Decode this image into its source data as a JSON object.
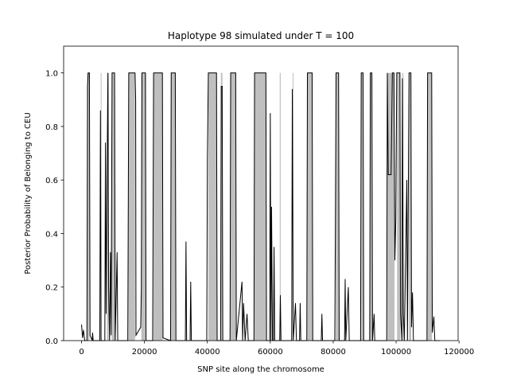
{
  "chart_data": {
    "type": "line",
    "title": "Haplotype 98 simulated under T =  100",
    "x_label": "SNP site along the chromosome",
    "y_label": "Posterior Probability of Belonging to CEU",
    "xlim": [
      -5700,
      119700
    ],
    "ylim": [
      0,
      1.1
    ],
    "xticks": [
      0,
      20000,
      40000,
      60000,
      80000,
      100000,
      120000
    ],
    "yticks": [
      {
        "value": 0,
        "label": "0.0"
      },
      0.2,
      0.4,
      0.6,
      0.8,
      {
        "value": 1,
        "label": "1.0"
      }
    ],
    "grid": false,
    "shaded_color": "#bfbfbf",
    "shaded_regions": [
      [
        1800,
        2500
      ],
      [
        6100,
        6300
      ],
      [
        8100,
        8600
      ],
      [
        9600,
        10600
      ],
      [
        14900,
        17000
      ],
      [
        19000,
        20500
      ],
      [
        22800,
        25800
      ],
      [
        28400,
        29900
      ],
      [
        40300,
        43000
      ],
      [
        44300,
        44800
      ],
      [
        47300,
        49100
      ],
      [
        54900,
        58700
      ],
      [
        63000,
        63300
      ],
      [
        67100,
        67300
      ],
      [
        71700,
        73400
      ],
      [
        80800,
        81800
      ],
      [
        88900,
        89600
      ],
      [
        91700,
        92400
      ],
      [
        97200,
        99500
      ],
      [
        100300,
        101300
      ],
      [
        102000,
        102300
      ],
      [
        104100,
        104800
      ],
      [
        109900,
        111400
      ]
    ],
    "series": [
      {
        "color": "#000000",
        "x": [
          0,
          300,
          600,
          1000,
          1700,
          1900,
          2100,
          2500,
          2700,
          3400,
          3500,
          3700,
          5800,
          6000,
          6200,
          7400,
          7600,
          7800,
          8100,
          8400,
          8600,
          8900,
          9200,
          9400,
          9700,
          10500,
          10700,
          11300,
          11500,
          14700,
          15000,
          17000,
          17200,
          17300,
          18800,
          19000,
          19200,
          20300,
          20500,
          22600,
          22900,
          25700,
          25900,
          28300,
          28500,
          29800,
          30000,
          33000,
          33200,
          33400,
          34500,
          34700,
          34900,
          39800,
          40000,
          40300,
          42900,
          43100,
          44200,
          44400,
          44700,
          44900,
          47200,
          47400,
          49000,
          49200,
          51000,
          51200,
          51500,
          52000,
          52600,
          53000,
          54800,
          55000,
          58600,
          58800,
          59800,
          60000,
          60200,
          60400,
          60700,
          61000,
          61200,
          61400,
          63000,
          63200,
          63400,
          66800,
          67000,
          67300,
          68000,
          68300,
          69300,
          69500,
          69700,
          71600,
          71800,
          73300,
          73500,
          76200,
          76400,
          76600,
          80500,
          80700,
          80900,
          81700,
          81900,
          83600,
          83800,
          84000,
          84800,
          85100,
          88700,
          88900,
          89500,
          89700,
          91600,
          91800,
          92300,
          92500,
          93000,
          93200,
          97000,
          97200,
          97500,
          98400,
          98800,
          99300,
          99600,
          99900,
          100200,
          101200,
          101400,
          101800,
          102000,
          102300,
          102600,
          103400,
          103600,
          104100,
          104700,
          104900,
          105200,
          105500,
          109800,
          110000,
          111300,
          111500,
          112000,
          112300,
          114000
        ],
        "values": [
          0.06,
          0.01,
          0.04,
          0,
          0,
          0.95,
          1,
          1,
          0.02,
          0,
          0.03,
          0,
          0,
          0.86,
          0,
          0,
          0.74,
          0.1,
          0.6,
          1,
          0.2,
          0,
          0.33,
          0.02,
          1,
          1,
          0,
          0.33,
          0,
          0,
          1,
          1,
          0.9,
          0.02,
          0.05,
          0.19,
          1,
          1,
          0,
          0,
          1,
          1,
          0.01,
          0,
          1,
          1,
          0,
          0,
          0.37,
          0,
          0,
          0.22,
          0,
          0,
          0.68,
          1,
          1,
          0,
          0,
          0.95,
          0.95,
          0,
          0,
          1,
          1,
          0,
          0.22,
          0,
          0.14,
          0,
          0.1,
          0,
          0,
          1,
          1,
          0,
          0,
          0.85,
          0,
          0.5,
          0,
          0,
          0.35,
          0,
          0,
          0.17,
          0,
          0,
          0.94,
          0,
          0.14,
          0,
          0,
          0.14,
          0,
          0,
          1,
          1,
          0,
          0,
          0.1,
          0,
          0,
          0.45,
          1,
          1,
          0,
          0,
          0.23,
          0,
          0.2,
          0,
          0,
          1,
          1,
          0,
          0,
          1,
          1,
          0,
          0.1,
          0,
          0,
          1,
          0.62,
          0.62,
          1,
          1,
          0.3,
          0.45,
          1,
          1,
          0.1,
          0,
          0.98,
          0.1,
          0,
          0.6,
          0,
          1,
          1,
          0.05,
          0.18,
          0,
          0,
          1,
          1,
          0.03,
          0.09,
          0,
          0
        ]
      }
    ]
  }
}
